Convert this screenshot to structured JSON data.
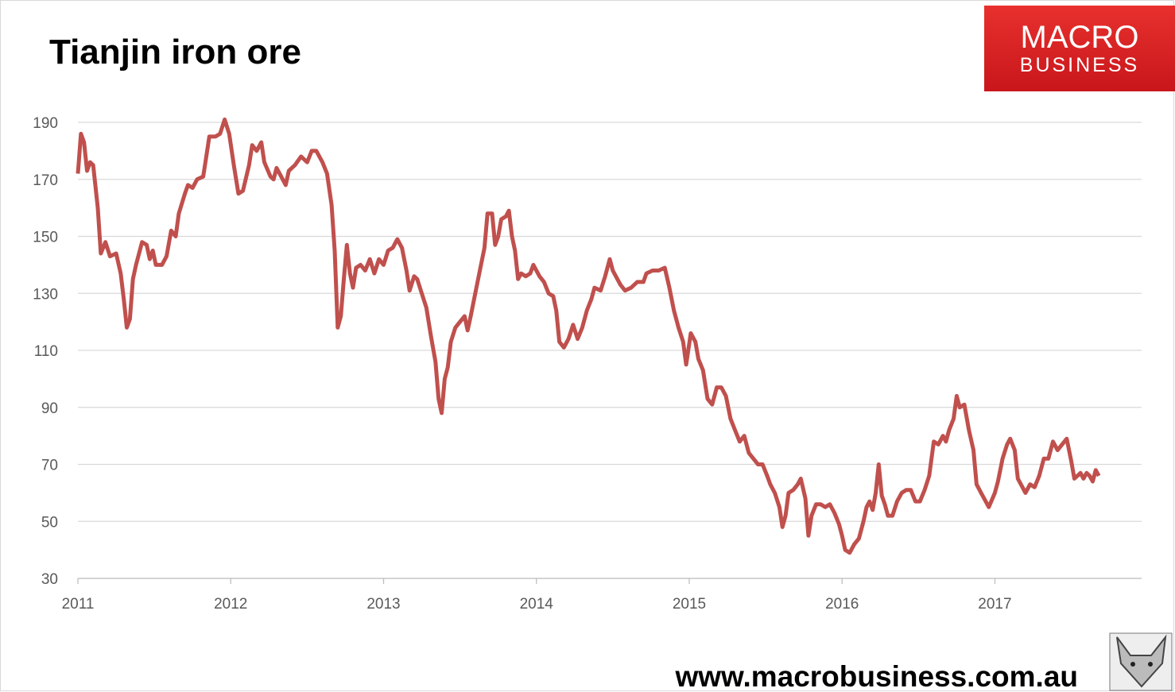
{
  "chart_data": {
    "type": "line",
    "title": "Tianjin iron ore",
    "logo": {
      "line1": "MACRO",
      "line2": "BUSINESS"
    },
    "footer": "www.macrobusiness.com.au",
    "xlim": [
      2011,
      2017.96
    ],
    "xticks": [
      2011,
      2012,
      2013,
      2014,
      2015,
      2016,
      2017
    ],
    "ylim": [
      30,
      190
    ],
    "yticks": [
      30,
      50,
      70,
      90,
      110,
      130,
      150,
      170,
      190
    ],
    "grid": true,
    "series": [
      {
        "color": "#c0504d",
        "x": [
          2011.0,
          2011.02,
          2011.04,
          2011.06,
          2011.08,
          2011.1,
          2011.13,
          2011.15,
          2011.18,
          2011.21,
          2011.25,
          2011.28,
          2011.3,
          2011.32,
          2011.34,
          2011.36,
          2011.38,
          2011.42,
          2011.45,
          2011.47,
          2011.49,
          2011.51,
          2011.55,
          2011.58,
          2011.61,
          2011.64,
          2011.66,
          2011.7,
          2011.72,
          2011.75,
          2011.78,
          2011.82,
          2011.84,
          2011.86,
          2011.9,
          2011.93,
          2011.96,
          2011.99,
          2012.02,
          2012.05,
          2012.08,
          2012.12,
          2012.14,
          2012.17,
          2012.2,
          2012.22,
          2012.26,
          2012.28,
          2012.3,
          2012.33,
          2012.36,
          2012.38,
          2012.42,
          2012.46,
          2012.5,
          2012.53,
          2012.56,
          2012.6,
          2012.63,
          2012.66,
          2012.68,
          2012.7,
          2012.72,
          2012.74,
          2012.76,
          2012.78,
          2012.8,
          2012.82,
          2012.85,
          2012.88,
          2012.91,
          2012.94,
          2012.97,
          2013.0,
          2013.03,
          2013.06,
          2013.09,
          2013.12,
          2013.15,
          2013.17,
          2013.2,
          2013.22,
          2013.25,
          2013.28,
          2013.31,
          2013.34,
          2013.36,
          2013.38,
          2013.4,
          2013.42,
          2013.44,
          2013.47,
          2013.5,
          2013.53,
          2013.55,
          2013.57,
          2013.6,
          2013.63,
          2013.66,
          2013.68,
          2013.71,
          2013.73,
          2013.75,
          2013.77,
          2013.8,
          2013.82,
          2013.84,
          2013.86,
          2013.88,
          2013.9,
          2013.93,
          2013.96,
          2013.98,
          2014.02,
          2014.05,
          2014.08,
          2014.11,
          2014.13,
          2014.15,
          2014.18,
          2014.21,
          2014.24,
          2014.27,
          2014.3,
          2014.33,
          2014.36,
          2014.38,
          2014.42,
          2014.45,
          2014.48,
          2014.5,
          2014.53,
          2014.55,
          2014.58,
          2014.62,
          2014.66,
          2014.7,
          2014.72,
          2014.76,
          2014.8,
          2014.84,
          2014.87,
          2014.9,
          2014.93,
          2014.96,
          2014.98,
          2015.01,
          2015.04,
          2015.06,
          2015.09,
          2015.12,
          2015.15,
          2015.18,
          2015.21,
          2015.24,
          2015.27,
          2015.3,
          2015.33,
          2015.36,
          2015.39,
          2015.42,
          2015.45,
          2015.48,
          2015.51,
          2015.53,
          2015.56,
          2015.59,
          2015.61,
          2015.63,
          2015.65,
          2015.68,
          2015.71,
          2015.73,
          2015.76,
          2015.78,
          2015.8,
          2015.83,
          2015.86,
          2015.89,
          2015.92,
          2015.95,
          2015.98,
          2016.0,
          2016.02,
          2016.05,
          2016.08,
          2016.11,
          2016.14,
          2016.16,
          2016.18,
          2016.2,
          2016.22,
          2016.24,
          2016.26,
          2016.28,
          2016.3,
          2016.33,
          2016.36,
          2016.39,
          2016.42,
          2016.45,
          2016.48,
          2016.51,
          2016.54,
          2016.57,
          2016.6,
          2016.63,
          2016.66,
          2016.68,
          2016.7,
          2016.73,
          2016.75,
          2016.77,
          2016.8,
          2016.83,
          2016.86,
          2016.88,
          2016.91,
          2016.94,
          2016.96,
          2017.0,
          2017.02,
          2017.05,
          2017.08,
          2017.1,
          2017.13,
          2017.15,
          2017.18,
          2017.2,
          2017.23,
          2017.26,
          2017.29,
          2017.32,
          2017.35,
          2017.38,
          2017.41,
          2017.44,
          2017.47,
          2017.5,
          2017.52,
          2017.54,
          2017.56,
          2017.58,
          2017.6,
          2017.62,
          2017.64,
          2017.66,
          2017.68
        ],
        "values": [
          172,
          186,
          183,
          173,
          176,
          175,
          160,
          144,
          148,
          143,
          144,
          137,
          128,
          118,
          121,
          135,
          140,
          148,
          147,
          142,
          145,
          140,
          140,
          143,
          152,
          150,
          158,
          165,
          168,
          167,
          170,
          171,
          178,
          185,
          185,
          186,
          191,
          186,
          175,
          165,
          166,
          175,
          182,
          180,
          183,
          176,
          171,
          170,
          174,
          171,
          168,
          173,
          175,
          178,
          176,
          180,
          180,
          176,
          172,
          161,
          145,
          118,
          122,
          135,
          147,
          137,
          132,
          139,
          140,
          138,
          142,
          137,
          142,
          140,
          145,
          146,
          149,
          146,
          138,
          131,
          136,
          135,
          130,
          125,
          115,
          106,
          93,
          88,
          100,
          104,
          113,
          118,
          120,
          122,
          117,
          122,
          130,
          138,
          146,
          158,
          158,
          147,
          150,
          156,
          157,
          159,
          150,
          145,
          135,
          137,
          136,
          137,
          140,
          136,
          134,
          130,
          129,
          124,
          113,
          111,
          114,
          119,
          114,
          118,
          124,
          128,
          132,
          131,
          136,
          142,
          138,
          135,
          133,
          131,
          132,
          134,
          134,
          137,
          138,
          138,
          139,
          132,
          124,
          118,
          113,
          105,
          116,
          113,
          107,
          103,
          93,
          91,
          97,
          97,
          94,
          86,
          82,
          78,
          80,
          74,
          72,
          70,
          70,
          66,
          63,
          60,
          55,
          48,
          52,
          60,
          61,
          63,
          65,
          58,
          45,
          52,
          56,
          56,
          55,
          56,
          53,
          49,
          45,
          40,
          39,
          42,
          44,
          50,
          55,
          57,
          54,
          60,
          70,
          59,
          56,
          52,
          52,
          57,
          60,
          61,
          61,
          57,
          57,
          61,
          66,
          78,
          77,
          80,
          78,
          82,
          86,
          94,
          90,
          91,
          82,
          75,
          63,
          60,
          57,
          55,
          60,
          64,
          72,
          77,
          79,
          75,
          65,
          62,
          60,
          63,
          62,
          66,
          72,
          72,
          78,
          75,
          77,
          79,
          71,
          65,
          66,
          67,
          65,
          67,
          66,
          64,
          68,
          66
        ]
      }
    ]
  }
}
